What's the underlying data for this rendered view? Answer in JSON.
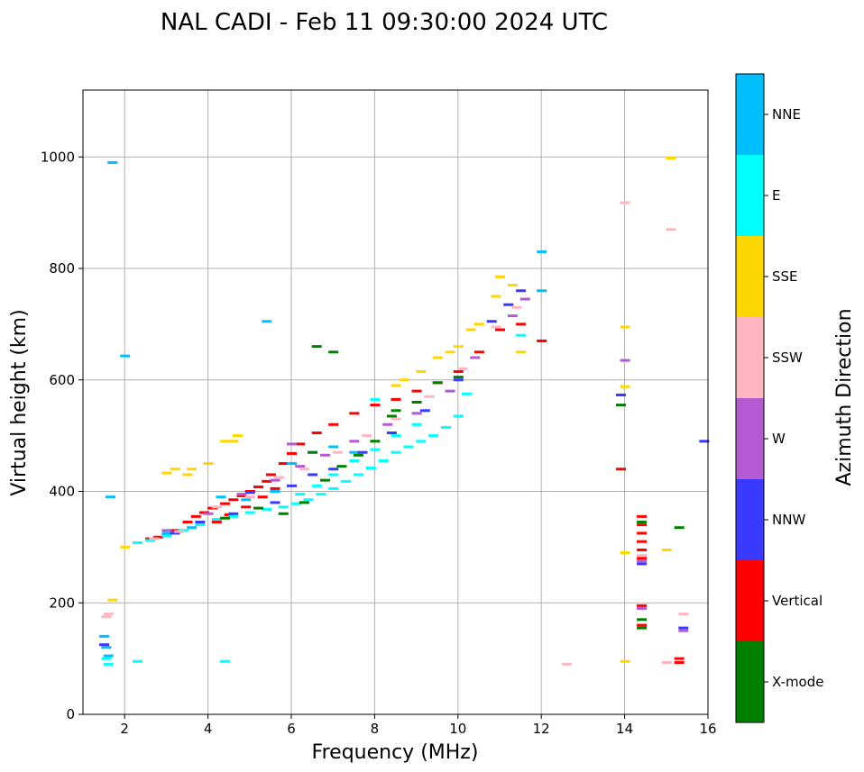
{
  "chart_data": {
    "type": "scatter",
    "title": "NAL CADI - Feb 11 09:30:00 2024 UTC",
    "xlabel": "Frequency (MHz)",
    "ylabel": "Virtual height (km)",
    "xlim": [
      1,
      16
    ],
    "ylim": [
      0,
      1120
    ],
    "xticks": [
      2,
      4,
      6,
      8,
      10,
      12,
      14,
      16
    ],
    "yticks": [
      0,
      200,
      400,
      600,
      800,
      1000
    ],
    "grid": true,
    "colorbar": {
      "label": "Azimuth Direction",
      "categories": [
        {
          "name": "X-mode",
          "color": "#008000"
        },
        {
          "name": "Vertical",
          "color": "#ff0000"
        },
        {
          "name": "NNW",
          "color": "#3a3aff"
        },
        {
          "name": "W",
          "color": "#b45ad2"
        },
        {
          "name": "SSW",
          "color": "#ffb6c1"
        },
        {
          "name": "SSE",
          "color": "#ffd700"
        },
        {
          "name": "E",
          "color": "#00ffff"
        },
        {
          "name": "NNE",
          "color": "#00bfff"
        }
      ]
    },
    "series": [
      {
        "name": "Vertical",
        "points": [
          [
            2.6,
            315
          ],
          [
            2.8,
            318
          ],
          [
            3.0,
            322
          ],
          [
            3.2,
            330
          ],
          [
            3.5,
            345
          ],
          [
            3.7,
            355
          ],
          [
            3.9,
            362
          ],
          [
            4.1,
            370
          ],
          [
            4.2,
            345
          ],
          [
            4.4,
            378
          ],
          [
            4.5,
            358
          ],
          [
            4.6,
            385
          ],
          [
            4.8,
            392
          ],
          [
            4.9,
            372
          ],
          [
            5.0,
            400
          ],
          [
            5.2,
            408
          ],
          [
            5.3,
            390
          ],
          [
            5.4,
            418
          ],
          [
            5.5,
            430
          ],
          [
            5.6,
            405
          ],
          [
            5.8,
            450
          ],
          [
            6.0,
            468
          ],
          [
            6.2,
            485
          ],
          [
            6.6,
            505
          ],
          [
            7.0,
            520
          ],
          [
            7.5,
            540
          ],
          [
            8.0,
            555
          ],
          [
            8.5,
            565
          ],
          [
            9.0,
            580
          ],
          [
            9.5,
            595
          ],
          [
            10.0,
            615
          ],
          [
            10.5,
            650
          ],
          [
            11.0,
            690
          ],
          [
            11.5,
            700
          ],
          [
            12.0,
            670
          ],
          [
            13.9,
            440
          ],
          [
            14.4,
            355
          ],
          [
            14.4,
            340
          ],
          [
            14.4,
            325
          ],
          [
            14.4,
            310
          ],
          [
            14.4,
            295
          ],
          [
            14.4,
            280
          ],
          [
            14.4,
            195
          ],
          [
            14.4,
            160
          ],
          [
            15.3,
            100
          ],
          [
            15.3,
            93
          ]
        ]
      },
      {
        "name": "E",
        "points": [
          [
            2.3,
            308
          ],
          [
            2.6,
            312
          ],
          [
            3.0,
            320
          ],
          [
            3.4,
            330
          ],
          [
            3.8,
            340
          ],
          [
            4.2,
            350
          ],
          [
            4.6,
            355
          ],
          [
            5.0,
            362
          ],
          [
            5.4,
            368
          ],
          [
            5.8,
            372
          ],
          [
            6.1,
            378
          ],
          [
            6.4,
            385
          ],
          [
            6.7,
            395
          ],
          [
            7.0,
            405
          ],
          [
            7.3,
            418
          ],
          [
            7.6,
            430
          ],
          [
            7.9,
            442
          ],
          [
            8.2,
            455
          ],
          [
            8.5,
            470
          ],
          [
            8.8,
            480
          ],
          [
            9.1,
            490
          ],
          [
            9.4,
            500
          ],
          [
            9.7,
            515
          ],
          [
            10.0,
            535
          ],
          [
            10.2,
            575
          ],
          [
            6.2,
            395
          ],
          [
            6.6,
            410
          ],
          [
            7.0,
            430
          ],
          [
            7.5,
            455
          ],
          [
            8.0,
            475
          ],
          [
            8.5,
            500
          ],
          [
            9.0,
            520
          ],
          [
            1.55,
            100
          ],
          [
            1.6,
            90
          ],
          [
            2.3,
            95
          ],
          [
            4.4,
            95
          ],
          [
            8.0,
            565
          ],
          [
            11.5,
            680
          ]
        ]
      },
      {
        "name": "NNE",
        "points": [
          [
            1.5,
            140
          ],
          [
            1.55,
            120
          ],
          [
            1.6,
            105
          ],
          [
            1.7,
            990
          ],
          [
            2.0,
            643
          ],
          [
            5.4,
            705
          ],
          [
            12.0,
            830
          ],
          [
            12.0,
            760
          ],
          [
            6.5,
            470
          ],
          [
            7.0,
            480
          ],
          [
            7.5,
            470
          ],
          [
            4.3,
            390
          ],
          [
            4.9,
            385
          ],
          [
            3.0,
            325
          ],
          [
            3.6,
            335
          ],
          [
            5.6,
            400
          ],
          [
            6.0,
            450
          ],
          [
            1.65,
            390
          ]
        ]
      },
      {
        "name": "X-mode",
        "points": [
          [
            4.4,
            352
          ],
          [
            5.2,
            370
          ],
          [
            5.8,
            360
          ],
          [
            6.3,
            380
          ],
          [
            6.5,
            470
          ],
          [
            6.6,
            660
          ],
          [
            6.8,
            420
          ],
          [
            7.2,
            445
          ],
          [
            7.6,
            465
          ],
          [
            8.0,
            490
          ],
          [
            8.4,
            535
          ],
          [
            8.5,
            545
          ],
          [
            9.0,
            560
          ],
          [
            9.5,
            595
          ],
          [
            10.0,
            605
          ],
          [
            13.9,
            555
          ],
          [
            14.4,
            345
          ],
          [
            14.4,
            170
          ],
          [
            14.4,
            155
          ],
          [
            15.3,
            335
          ],
          [
            7.0,
            650
          ]
        ]
      },
      {
        "name": "NNW",
        "points": [
          [
            3.2,
            325
          ],
          [
            3.8,
            345
          ],
          [
            4.6,
            360
          ],
          [
            5.0,
            398
          ],
          [
            5.6,
            380
          ],
          [
            6.0,
            410
          ],
          [
            6.5,
            430
          ],
          [
            7.0,
            440
          ],
          [
            7.7,
            470
          ],
          [
            8.4,
            505
          ],
          [
            9.2,
            545
          ],
          [
            10.0,
            600
          ],
          [
            10.8,
            705
          ],
          [
            11.2,
            735
          ],
          [
            11.5,
            760
          ],
          [
            13.9,
            573
          ],
          [
            15.9,
            490
          ],
          [
            15.4,
            155
          ],
          [
            14.4,
            270
          ],
          [
            1.5,
            125
          ]
        ]
      },
      {
        "name": "W",
        "points": [
          [
            3.0,
            330
          ],
          [
            4.0,
            360
          ],
          [
            4.8,
            395
          ],
          [
            5.6,
            420
          ],
          [
            6.2,
            445
          ],
          [
            6.8,
            465
          ],
          [
            7.5,
            490
          ],
          [
            8.3,
            520
          ],
          [
            9.0,
            540
          ],
          [
            9.8,
            580
          ],
          [
            10.4,
            640
          ],
          [
            11.3,
            715
          ],
          [
            11.6,
            745
          ],
          [
            14.0,
            635
          ],
          [
            14.4,
            190
          ],
          [
            15.4,
            150
          ],
          [
            14.4,
            275
          ],
          [
            6.0,
            485
          ]
        ]
      },
      {
        "name": "SSW",
        "points": [
          [
            2.7,
            315
          ],
          [
            3.3,
            328
          ],
          [
            4.2,
            372
          ],
          [
            5.0,
            390
          ],
          [
            5.7,
            425
          ],
          [
            6.3,
            440
          ],
          [
            7.1,
            470
          ],
          [
            7.8,
            500
          ],
          [
            8.5,
            530
          ],
          [
            9.3,
            570
          ],
          [
            10.1,
            620
          ],
          [
            10.9,
            695
          ],
          [
            11.4,
            730
          ],
          [
            14.0,
            918
          ],
          [
            14.4,
            285
          ],
          [
            15.1,
            870
          ],
          [
            15.4,
            180
          ],
          [
            12.6,
            90
          ],
          [
            15.0,
            93
          ],
          [
            1.55,
            175
          ],
          [
            1.6,
            180
          ]
        ]
      },
      {
        "name": "SSE",
        "points": [
          [
            3.0,
            433
          ],
          [
            3.2,
            440
          ],
          [
            3.5,
            430
          ],
          [
            3.6,
            440
          ],
          [
            4.4,
            490
          ],
          [
            4.6,
            490
          ],
          [
            8.5,
            590
          ],
          [
            8.7,
            600
          ],
          [
            9.1,
            615
          ],
          [
            9.5,
            640
          ],
          [
            9.8,
            650
          ],
          [
            10.0,
            660
          ],
          [
            10.3,
            690
          ],
          [
            10.5,
            700
          ],
          [
            10.9,
            750
          ],
          [
            11.0,
            785
          ],
          [
            11.3,
            770
          ],
          [
            11.5,
            650
          ],
          [
            14.0,
            695
          ],
          [
            14.0,
            588
          ],
          [
            14.0,
            290
          ],
          [
            14.0,
            95
          ],
          [
            15.0,
            295
          ],
          [
            15.1,
            998
          ],
          [
            1.7,
            205
          ],
          [
            2.0,
            300
          ],
          [
            4.0,
            450
          ],
          [
            4.7,
            500
          ]
        ]
      }
    ]
  }
}
